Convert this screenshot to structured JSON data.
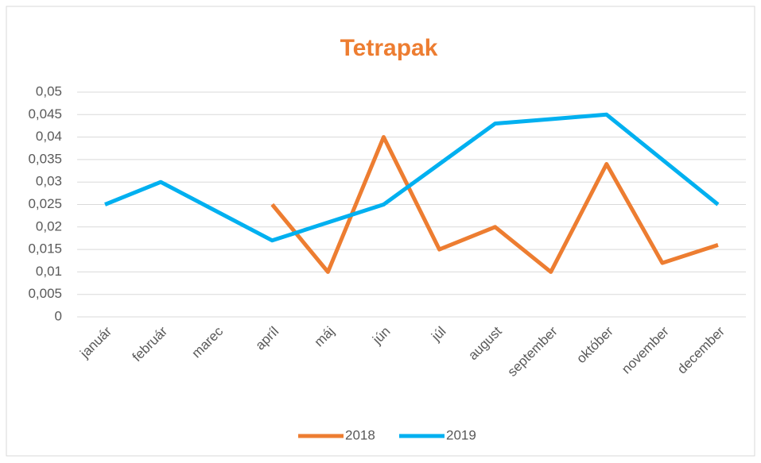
{
  "chart_data": {
    "type": "line",
    "title": "Tetrapak",
    "categories": [
      "január",
      "február",
      "marec",
      "apríl",
      "máj",
      "jún",
      "júl",
      "august",
      "september",
      "október",
      "november",
      "december"
    ],
    "series": [
      {
        "name": "2018",
        "color": "#ed7d31",
        "values": [
          null,
          null,
          null,
          0.025,
          0.01,
          0.04,
          0.015,
          0.02,
          0.01,
          0.034,
          0.012,
          0.016
        ]
      },
      {
        "name": "2019",
        "color": "#00b0f0",
        "values": [
          0.025,
          0.03,
          0.0235,
          0.017,
          0.021,
          0.025,
          0.034,
          0.043,
          0.044,
          0.045,
          0.035,
          0.025
        ]
      }
    ],
    "ylim": [
      0,
      0.05
    ],
    "yticks": [
      0,
      {
        "value": 0.005,
        "label": "0,005"
      },
      {
        "value": 0.01,
        "label": "0,01"
      },
      {
        "value": 0.015,
        "label": "0,015"
      },
      {
        "value": 0.02,
        "label": "0,02"
      },
      {
        "value": 0.025,
        "label": "0,025"
      },
      {
        "value": 0.03,
        "label": "0,03"
      },
      {
        "value": 0.035,
        "label": "0,035"
      },
      {
        "value": 0.04,
        "label": "0,04"
      },
      {
        "value": 0.045,
        "label": "0,045"
      },
      {
        "value": 0.05,
        "label": "0,05"
      }
    ],
    "grid": true,
    "legend": "bottom"
  }
}
